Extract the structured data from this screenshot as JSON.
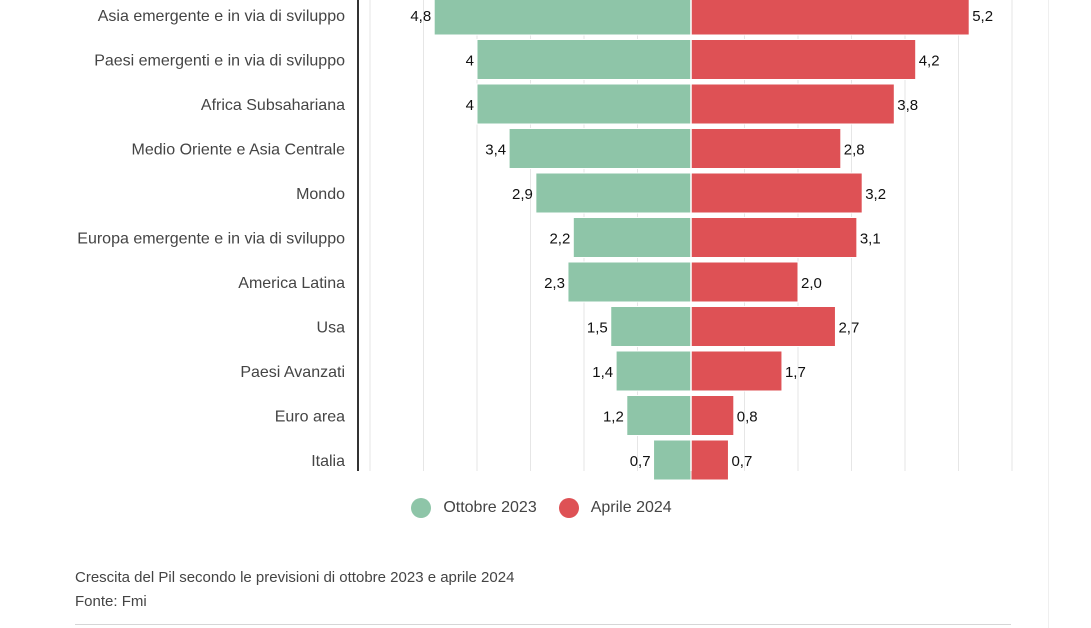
{
  "chart_data": {
    "type": "bar",
    "orientation": "horizontal-diverging",
    "categories": [
      "Asia emergente e in via di sviluppo",
      "Paesi emergenti e in via di sviluppo",
      "Africa Subsahariana",
      "Medio Oriente e Asia Centrale",
      "Mondo",
      "Europa emergente e in via di sviluppo",
      "America Latina",
      "Usa",
      "Paesi Avanzati",
      "Euro area",
      "Italia"
    ],
    "series": [
      {
        "name": "Ottobre 2023",
        "color": "#8ec5a8",
        "side": "left",
        "values": [
          4.8,
          4,
          4,
          3.4,
          2.9,
          2.2,
          2.3,
          1.5,
          1.4,
          1.2,
          0.7
        ],
        "labels": [
          "4,8",
          "4",
          "4",
          "3,4",
          "2,9",
          "2,2",
          "2,3",
          "1,5",
          "1,4",
          "1,2",
          "0,7"
        ]
      },
      {
        "name": "Aprile 2024",
        "color": "#de5155",
        "side": "right",
        "values": [
          5.2,
          4.2,
          3.8,
          2.8,
          3.2,
          3.1,
          2.0,
          2.7,
          1.7,
          0.8,
          0.7
        ],
        "labels": [
          "5,2",
          "4,2",
          "3,8",
          "2,8",
          "3,2",
          "3,1",
          "2,0",
          "2,7",
          "1,7",
          "0,8",
          "0,7"
        ]
      }
    ],
    "xlim": [
      -6,
      6
    ],
    "grid": true,
    "legend_position": "bottom-center"
  },
  "caption": {
    "title": "Crescita del Pil secondo le previsioni di ottobre 2023 e aprile 2024",
    "source": "Fonte: Fmi"
  }
}
